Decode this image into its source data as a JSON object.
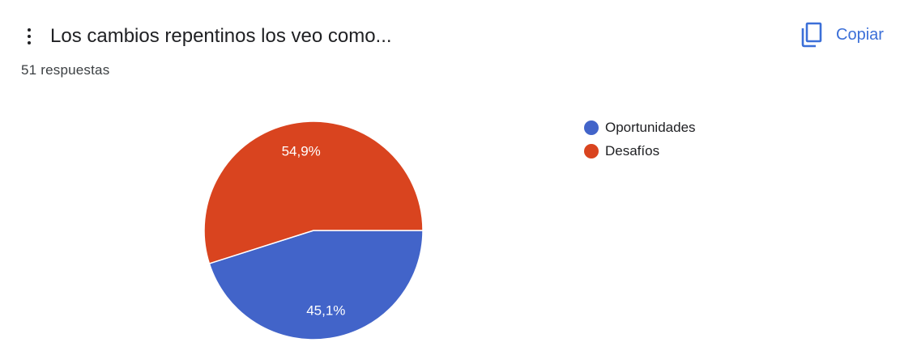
{
  "header": {
    "title": "Los cambios repentinos los veo como...",
    "responses": "51 respuestas",
    "copy_label": "Copiar",
    "menu_icon": "more-vert-icon",
    "copy_icon": "content-copy-icon"
  },
  "colors": {
    "accent": "#3b6fd8",
    "series_blue": "#4264c9",
    "series_red": "#d9441f"
  },
  "chart_data": {
    "type": "pie",
    "title": "",
    "slices": [
      {
        "label": "Oportunidades",
        "value": 45.1,
        "display": "45,1%",
        "color": "#4264c9"
      },
      {
        "label": "Desafíos",
        "value": 54.9,
        "display": "54,9%",
        "color": "#d9441f"
      }
    ],
    "legend_position": "right"
  }
}
